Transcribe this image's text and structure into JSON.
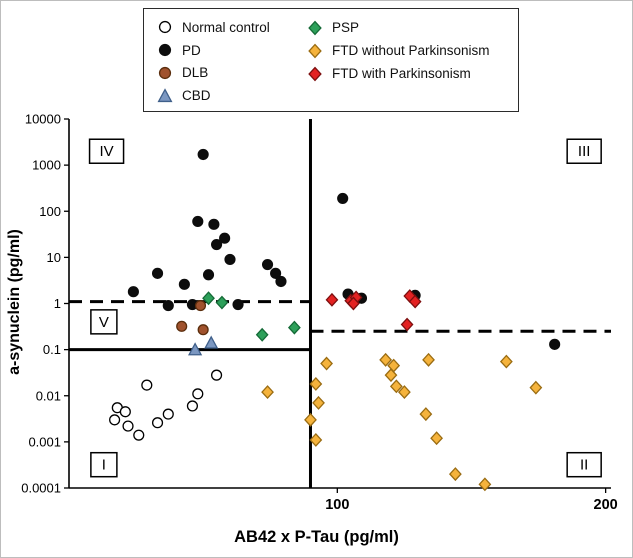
{
  "chart_data": {
    "type": "scatter",
    "title": "",
    "xlabel": "AB42 x P-Tau (pg/ml)",
    "ylabel": "a-synuclein (pg/ml)",
    "x_scale": "linear",
    "y_scale": "log",
    "xlim": [
      0,
      202
    ],
    "ylim": [
      0.0001,
      10000
    ],
    "x_ticks": [
      100,
      200
    ],
    "y_ticks": [
      10000,
      1000,
      100,
      10,
      1,
      0.1,
      0.01,
      0.001,
      0.0001
    ],
    "grid": false,
    "legend_position": "top",
    "reference_lines": [
      {
        "type": "vline",
        "x": 90,
        "style": "solid"
      },
      {
        "type": "hline",
        "y": 1.1,
        "x_from": 0,
        "x_to": 90,
        "style": "dashed"
      },
      {
        "type": "hline",
        "y": 0.25,
        "x_from": 90,
        "x_to": 202,
        "style": "dashed"
      },
      {
        "type": "hline",
        "y": 0.1,
        "x_from": 0,
        "x_to": 90,
        "style": "solid"
      }
    ],
    "quadrant_labels": [
      {
        "label": "IV",
        "x": 14,
        "y": 2000
      },
      {
        "label": "III",
        "x": 192,
        "y": 2000
      },
      {
        "label": "V",
        "x": 13,
        "y": 0.4
      },
      {
        "label": "I",
        "x": 13,
        "y": 0.00032
      },
      {
        "label": "II",
        "x": 192,
        "y": 0.00032
      }
    ],
    "series": [
      {
        "name": "Normal control",
        "marker": "circle",
        "fill": "#ffffff",
        "stroke": "#000000",
        "points": [
          [
            29,
            0.017
          ],
          [
            18,
            0.0055
          ],
          [
            21,
            0.0045
          ],
          [
            17,
            0.003
          ],
          [
            22,
            0.0022
          ],
          [
            26,
            0.0014
          ],
          [
            33,
            0.0026
          ],
          [
            37,
            0.004
          ],
          [
            46,
            0.006
          ],
          [
            48,
            0.011
          ],
          [
            55,
            0.028
          ]
        ]
      },
      {
        "name": "PD",
        "marker": "circle",
        "fill": "#0d0d0d",
        "stroke": "#0d0d0d",
        "points": [
          [
            50,
            1700
          ],
          [
            102,
            190
          ],
          [
            48,
            60
          ],
          [
            54,
            52
          ],
          [
            58,
            26
          ],
          [
            55,
            19
          ],
          [
            60,
            9
          ],
          [
            52,
            4.2
          ],
          [
            33,
            4.5
          ],
          [
            43,
            2.6
          ],
          [
            74,
            7
          ],
          [
            77,
            4.5
          ],
          [
            79,
            3
          ],
          [
            24,
            1.8
          ],
          [
            37,
            0.9
          ],
          [
            46,
            0.95
          ],
          [
            63,
            0.95
          ],
          [
            104,
            1.6
          ],
          [
            109,
            1.3
          ],
          [
            129,
            1.5
          ],
          [
            181,
            0.13
          ]
        ]
      },
      {
        "name": "DLB",
        "marker": "circle",
        "fill": "#a0522d",
        "stroke": "#5a2d0c",
        "points": [
          [
            42,
            0.32
          ],
          [
            50,
            0.27
          ],
          [
            49,
            0.9
          ]
        ]
      },
      {
        "name": "CBD",
        "marker": "triangle",
        "fill": "#7b97c1",
        "stroke": "#3f5f8a",
        "points": [
          [
            47,
            0.1
          ],
          [
            53,
            0.14
          ]
        ]
      },
      {
        "name": "PSP",
        "marker": "diamond",
        "fill": "#2da05a",
        "stroke": "#156a37",
        "points": [
          [
            52,
            1.3
          ],
          [
            57,
            1.05
          ],
          [
            72,
            0.21
          ],
          [
            84,
            0.3
          ]
        ]
      },
      {
        "name": "FTD without Parkinsonism",
        "marker": "diamond",
        "fill": "#f5b33c",
        "stroke": "#9a6c12",
        "points": [
          [
            74,
            0.012
          ],
          [
            90,
            0.003
          ],
          [
            92,
            0.0011
          ],
          [
            92,
            0.018
          ],
          [
            93,
            0.007
          ],
          [
            96,
            0.05
          ],
          [
            118,
            0.06
          ],
          [
            120,
            0.028
          ],
          [
            121,
            0.045
          ],
          [
            122,
            0.016
          ],
          [
            125,
            0.012
          ],
          [
            134,
            0.06
          ],
          [
            133,
            0.004
          ],
          [
            137,
            0.0012
          ],
          [
            144,
            0.0002
          ],
          [
            163,
            0.055
          ],
          [
            174,
            0.015
          ],
          [
            155,
            0.00012
          ]
        ]
      },
      {
        "name": "FTD with Parkinsonism",
        "marker": "diamond",
        "fill": "#e32222",
        "stroke": "#7d0f0f",
        "points": [
          [
            98,
            1.2
          ],
          [
            105,
            1.15
          ],
          [
            107,
            1.35
          ],
          [
            106,
            1.0
          ],
          [
            127,
            1.45
          ],
          [
            129,
            1.1
          ],
          [
            126,
            0.35
          ]
        ]
      }
    ]
  },
  "legend": {
    "columns": [
      4,
      3
    ]
  }
}
